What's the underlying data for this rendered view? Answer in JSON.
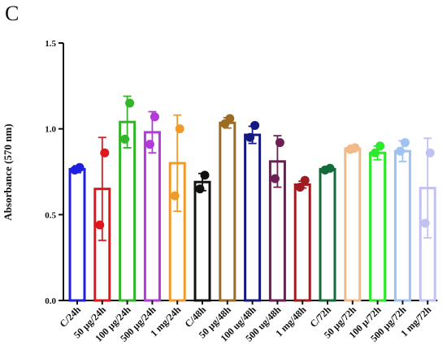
{
  "panel_label": "C",
  "chart_data": {
    "type": "bar",
    "ylabel": "Absorbance (570 nm)",
    "xlabel": "",
    "ylim": [
      0.0,
      1.5
    ],
    "yticks": [
      "0.0",
      "0.5",
      "1.0",
      "1.5"
    ],
    "grid": false,
    "legend": "none",
    "categories": [
      "C/24h",
      "50 µg/24h",
      "100 µg/24h",
      "500 µg/24h",
      "1 mg/24h",
      "C/48h",
      "50 µg/48h",
      "100 ug/48h",
      "500 ug/48h",
      "1 mg/48h",
      "C/72h",
      "50 µg/72h",
      "100 µ/72h",
      "500 µg/72h",
      "1 mg/72h"
    ],
    "values": [
      0.765,
      0.65,
      1.04,
      0.98,
      0.8,
      0.69,
      1.035,
      0.965,
      0.81,
      0.675,
      0.765,
      0.885,
      0.86,
      0.87,
      0.655
    ],
    "errors": [
      0.02,
      0.3,
      0.15,
      0.12,
      0.28,
      0.05,
      0.03,
      0.05,
      0.15,
      0.02,
      0.01,
      0.02,
      0.04,
      0.06,
      0.29
    ],
    "points": [
      [
        0.76,
        0.775
      ],
      [
        0.44,
        0.86
      ],
      [
        0.94,
        1.15
      ],
      [
        0.91,
        1.07
      ],
      [
        0.61,
        1.0
      ],
      [
        0.65,
        0.73
      ],
      [
        1.03,
        1.06
      ],
      [
        0.95,
        1.02
      ],
      [
        0.71,
        0.92
      ],
      [
        0.66,
        0.7
      ],
      [
        0.76,
        0.77
      ],
      [
        0.88,
        0.89
      ],
      [
        0.86,
        0.9
      ],
      [
        0.87,
        0.92
      ],
      [
        0.45,
        0.86
      ]
    ],
    "colors": [
      "#1f1fe0",
      "#e0161c",
      "#33b52a",
      "#b23ad8",
      "#f09a2a",
      "#111111",
      "#9e6b22",
      "#141a80",
      "#6b1f52",
      "#a01a1f",
      "#136b3a",
      "#f3b988",
      "#2ee82b",
      "#9ec2f2",
      "#c2c2f2"
    ]
  }
}
